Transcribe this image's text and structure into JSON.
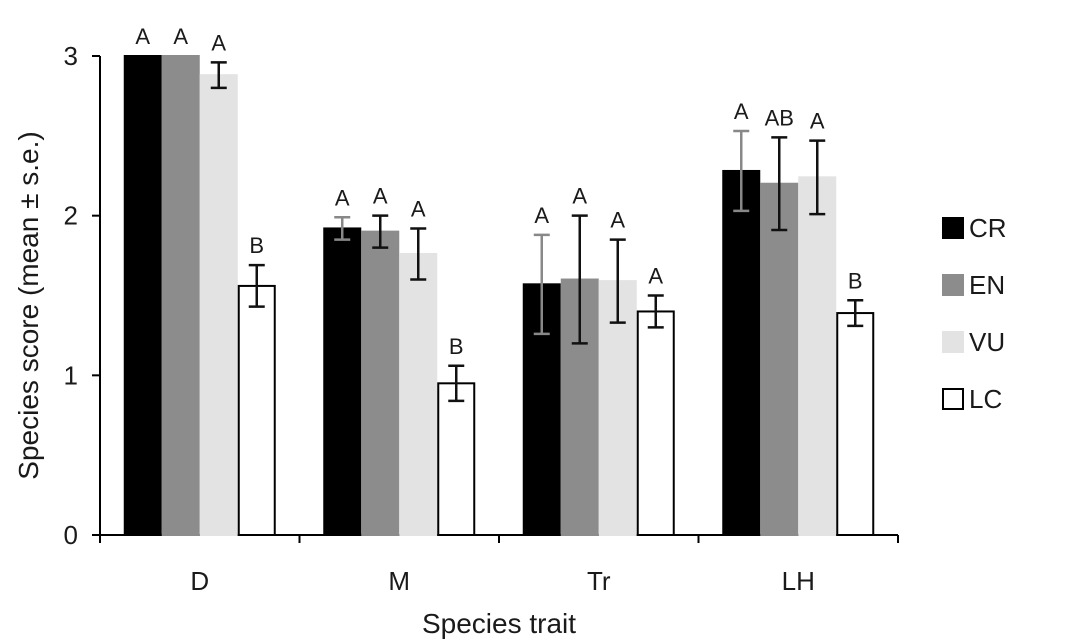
{
  "chart_data": {
    "type": "bar",
    "title": "",
    "xlabel": "Species trait",
    "ylabel": "Species score (mean ± s.e.)",
    "categories": [
      "D",
      "M",
      "Tr",
      "LH"
    ],
    "ylim": [
      0,
      3
    ],
    "yticks": [
      0,
      1,
      2,
      3
    ],
    "grid": false,
    "legend_position": "right",
    "series": [
      {
        "name": "CR",
        "fill": "#000000",
        "stroke": "#000000",
        "error_color": "#888888",
        "values": [
          3.0,
          1.92,
          1.57,
          2.28
        ],
        "errors": [
          0.0,
          0.07,
          0.31,
          0.25
        ],
        "labels": [
          "A",
          "A",
          "A",
          "A"
        ]
      },
      {
        "name": "EN",
        "fill": "#8c8c8c",
        "stroke": "#8c8c8c",
        "error_color": "#111111",
        "values": [
          3.0,
          1.9,
          1.6,
          2.2
        ],
        "errors": [
          0.0,
          0.1,
          0.4,
          0.29
        ],
        "labels": [
          "A",
          "A",
          "A",
          "AB"
        ]
      },
      {
        "name": "VU",
        "fill": "#e3e3e3",
        "stroke": "#e3e3e3",
        "error_color": "#111111",
        "values": [
          2.88,
          1.76,
          1.59,
          2.24
        ],
        "errors": [
          0.08,
          0.16,
          0.26,
          0.23
        ],
        "labels": [
          "A",
          "A",
          "A",
          "A"
        ]
      },
      {
        "name": "LC",
        "fill": "#ffffff",
        "stroke": "#000000",
        "error_color": "#111111",
        "values": [
          1.56,
          0.95,
          1.4,
          1.39
        ],
        "errors": [
          0.13,
          0.11,
          0.1,
          0.08
        ],
        "labels": [
          "B",
          "B",
          "A",
          "B"
        ]
      }
    ]
  }
}
